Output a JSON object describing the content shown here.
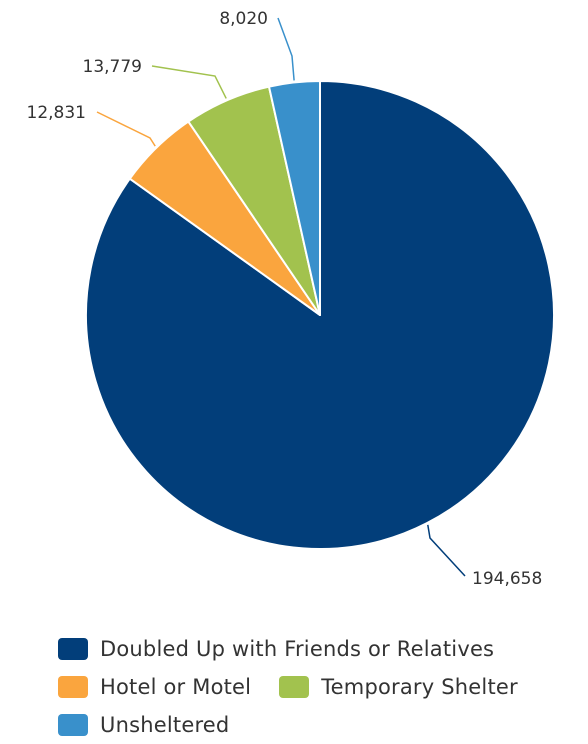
{
  "chart_data": {
    "type": "pie",
    "title": "",
    "start_angle_deg": 0,
    "direction": "clockwise",
    "slices": [
      {
        "label": "Doubled Up with Friends or Relatives",
        "value": 194658,
        "value_label": "194,658",
        "color": "#023e7a"
      },
      {
        "label": "Hotel or Motel",
        "value": 12831,
        "value_label": "12,831",
        "color": "#faa53e"
      },
      {
        "label": "Temporary Shelter",
        "value": 13779,
        "value_label": "13,779",
        "color": "#a2c24e"
      },
      {
        "label": "Unsheltered",
        "value": 8020,
        "value_label": "8,020",
        "color": "#3990cb"
      }
    ],
    "legend": {
      "position": "bottom",
      "rows": [
        [
          0
        ],
        [
          1,
          2
        ],
        [
          3
        ]
      ]
    }
  }
}
